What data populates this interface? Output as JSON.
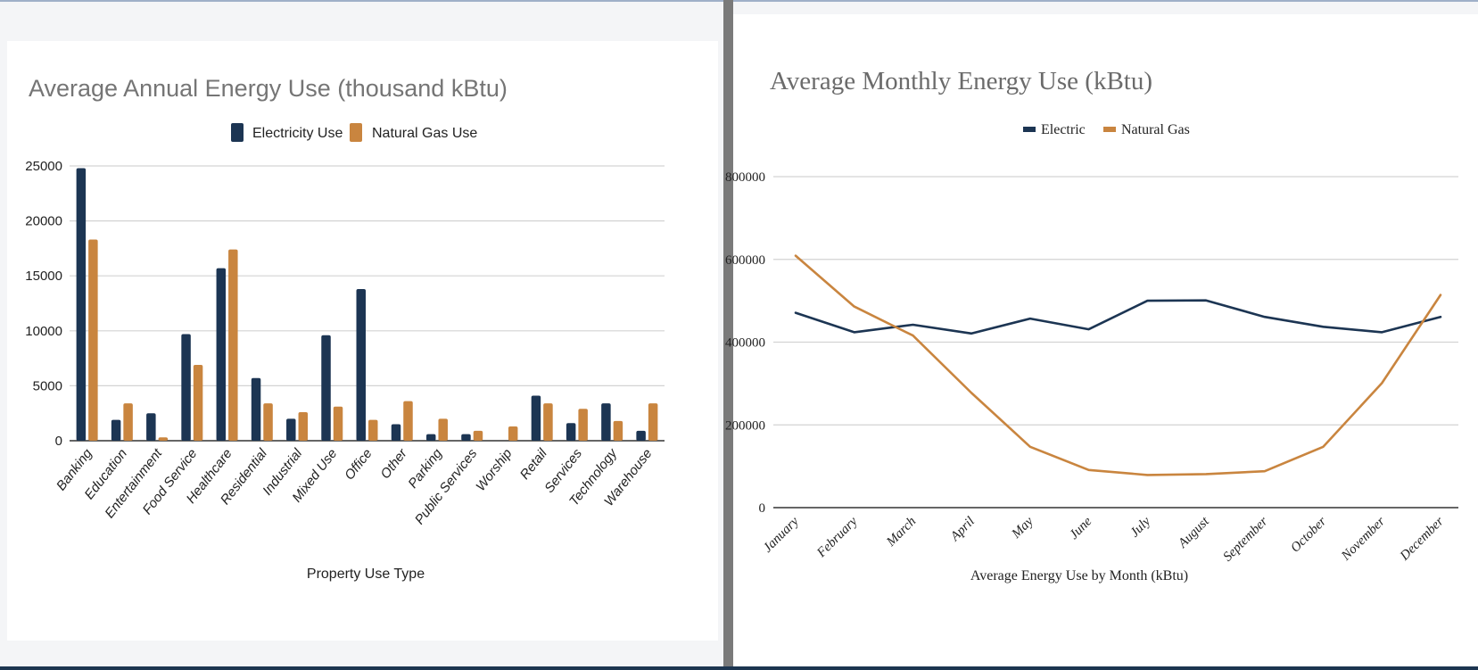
{
  "colors": {
    "electric": "#1c3553",
    "gas": "#c9853f",
    "grid": "#d3d3d3",
    "axis": "#333333"
  },
  "chart_data": [
    {
      "type": "bar",
      "title": "Average Annual Energy Use (thousand kBtu)",
      "xlabel": "Property Use Type",
      "ylabel": "",
      "ylim": [
        0,
        25000
      ],
      "yticks": [
        0,
        5000,
        10000,
        15000,
        20000,
        25000
      ],
      "ytick_labels": [
        "0",
        "5000",
        "10000",
        "15000",
        "20000",
        "25000"
      ],
      "grid": true,
      "legend_position": "top",
      "categories": [
        "Banking",
        "Education",
        "Entertainment",
        "Food Service",
        "Healthcare",
        "Residential",
        "Industrial",
        "Mixed Use",
        "Office",
        "Other",
        "Parking",
        "Public Services",
        "Worship",
        "Retail",
        "Services",
        "Technology",
        "Warehouse"
      ],
      "series": [
        {
          "name": "Electricity Use",
          "color": "#1c3553",
          "values": [
            24800,
            1900,
            2500,
            9700,
            15700,
            5700,
            2000,
            9600,
            13800,
            1500,
            600,
            600,
            0,
            4100,
            1600,
            3400,
            900
          ]
        },
        {
          "name": "Natural Gas Use",
          "color": "#c9853f",
          "values": [
            18300,
            3400,
            300,
            6900,
            17400,
            3400,
            2600,
            3100,
            1900,
            3600,
            2000,
            900,
            1300,
            3400,
            2900,
            1800,
            3400
          ]
        }
      ]
    },
    {
      "type": "line",
      "title": "Average Monthly Energy Use (kBtu)",
      "xlabel": "Average Energy Use by Month (kBtu)",
      "ylabel": "",
      "ylim": [
        0,
        800000
      ],
      "yticks": [
        0,
        200000,
        400000,
        600000,
        800000
      ],
      "ytick_labels": [
        "0",
        "200000",
        "400000",
        "600000",
        "800000"
      ],
      "grid": true,
      "legend_position": "top",
      "categories": [
        "January",
        "February",
        "March",
        "April",
        "May",
        "June",
        "July",
        "August",
        "September",
        "October",
        "November",
        "December"
      ],
      "series": [
        {
          "name": "Electric",
          "color": "#1c3553",
          "values": [
            471000,
            424000,
            442000,
            421000,
            457000,
            431000,
            500000,
            501000,
            461000,
            437000,
            424000,
            461000
          ]
        },
        {
          "name": "Natural Gas",
          "color": "#c9853f",
          "values": [
            609000,
            486000,
            416000,
            277000,
            147000,
            91000,
            79000,
            81000,
            88000,
            147000,
            301000,
            514000
          ]
        }
      ]
    }
  ]
}
